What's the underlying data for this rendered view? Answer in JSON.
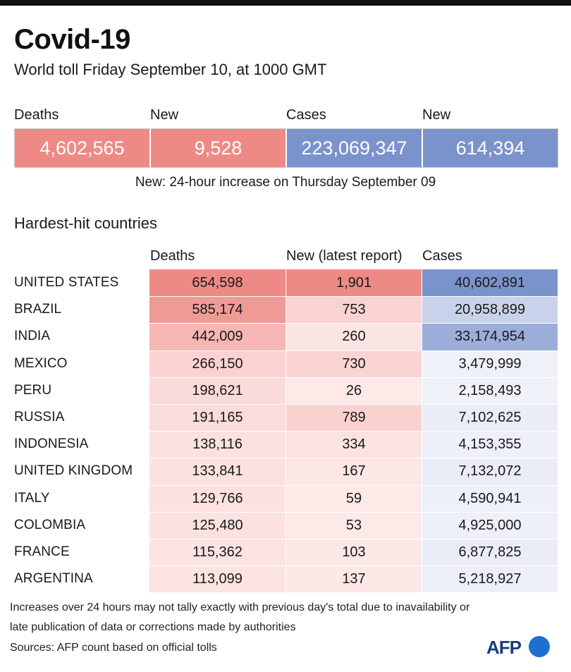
{
  "header": {
    "title": "Covid-19",
    "subtitle": "World toll Friday September 10,  at 1000 GMT"
  },
  "summary": {
    "labels": [
      "Deaths",
      "New",
      "Cases",
      "New"
    ],
    "values": [
      "4,602,565",
      "9,528",
      "223,069,347",
      "614,394"
    ],
    "colors": [
      "#ee8a86",
      "#ee8a86",
      "#7b93cc",
      "#7b93cc"
    ],
    "note": "New: 24-hour increase on Thursday September 09"
  },
  "table": {
    "title": "Hardest-hit countries",
    "columns": [
      "Deaths",
      "New (latest report)",
      "Cases"
    ],
    "rows": [
      {
        "country": "UNITED STATES",
        "deaths": "654,598",
        "new": "1,901",
        "cases": "40,602,891"
      },
      {
        "country": "BRAZIL",
        "deaths": "585,174",
        "new": "753",
        "cases": "20,958,899"
      },
      {
        "country": "INDIA",
        "deaths": "442,009",
        "new": "260",
        "cases": "33,174,954"
      },
      {
        "country": "MEXICO",
        "deaths": "266,150",
        "new": "730",
        "cases": "3,479,999"
      },
      {
        "country": "PERU",
        "deaths": "198,621",
        "new": "26",
        "cases": "2,158,493"
      },
      {
        "country": "RUSSIA",
        "deaths": "191,165",
        "new": "789",
        "cases": "7,102,625"
      },
      {
        "country": "INDONESIA",
        "deaths": "138,116",
        "new": "334",
        "cases": "4,153,355"
      },
      {
        "country": "UNITED KINGDOM",
        "deaths": "133,841",
        "new": "167",
        "cases": "7,132,072"
      },
      {
        "country": "ITALY",
        "deaths": "129,766",
        "new": "59",
        "cases": "4,590,941"
      },
      {
        "country": "COLOMBIA",
        "deaths": "125,480",
        "new": "53",
        "cases": "4,925,000"
      },
      {
        "country": "FRANCE",
        "deaths": "115,362",
        "new": "103",
        "cases": "6,877,825"
      },
      {
        "country": "ARGENTINA",
        "deaths": "113,099",
        "new": "137",
        "cases": "5,218,927"
      }
    ]
  },
  "colors": {
    "deaths_scale": [
      "#ee8a86",
      "#fce9e8"
    ],
    "cases_scale": [
      "#7b93cc",
      "#f1f3fa"
    ]
  },
  "footer": {
    "footnote": "Increases over 24 hours may not tally exactly with previous day's total due to inavailability or late publication of data or corrections made by authorities",
    "sources": "Sources: AFP count based on official tolls",
    "logo_text": "AFP"
  }
}
